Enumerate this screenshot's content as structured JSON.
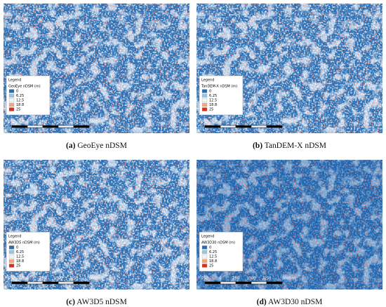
{
  "panels": [
    {
      "caption_label": "(a)",
      "caption_text": "GeoEye nDSM",
      "layer_name": "GeoEye nDSM (m)"
    },
    {
      "caption_label": "(b)",
      "caption_text": "TanDEM-X nDSM",
      "layer_name": "TanDEM-X nDSM (m)"
    },
    {
      "caption_label": "(c)",
      "caption_text": "AW3D5 nDSM",
      "layer_name": "AW3D5 nDSM (m)"
    },
    {
      "caption_label": "(d)",
      "caption_text": "AW3D30 nDSM",
      "layer_name": "AW3D30 nDSM (m)"
    }
  ],
  "legend": {
    "title": "Legend",
    "items": [
      {
        "label": "0",
        "color": "#2b6cb0"
      },
      {
        "label": "6.25",
        "color": "#9cc3e0"
      },
      {
        "label": "12.5",
        "color": "#f4f4f4"
      },
      {
        "label": "18.8",
        "color": "#f4a582"
      },
      {
        "label": "25",
        "color": "#d7301f"
      }
    ]
  },
  "scale_bar": {
    "labels": [
      "750",
      "0",
      "750",
      "1500",
      "2250",
      "3000 m"
    ]
  }
}
